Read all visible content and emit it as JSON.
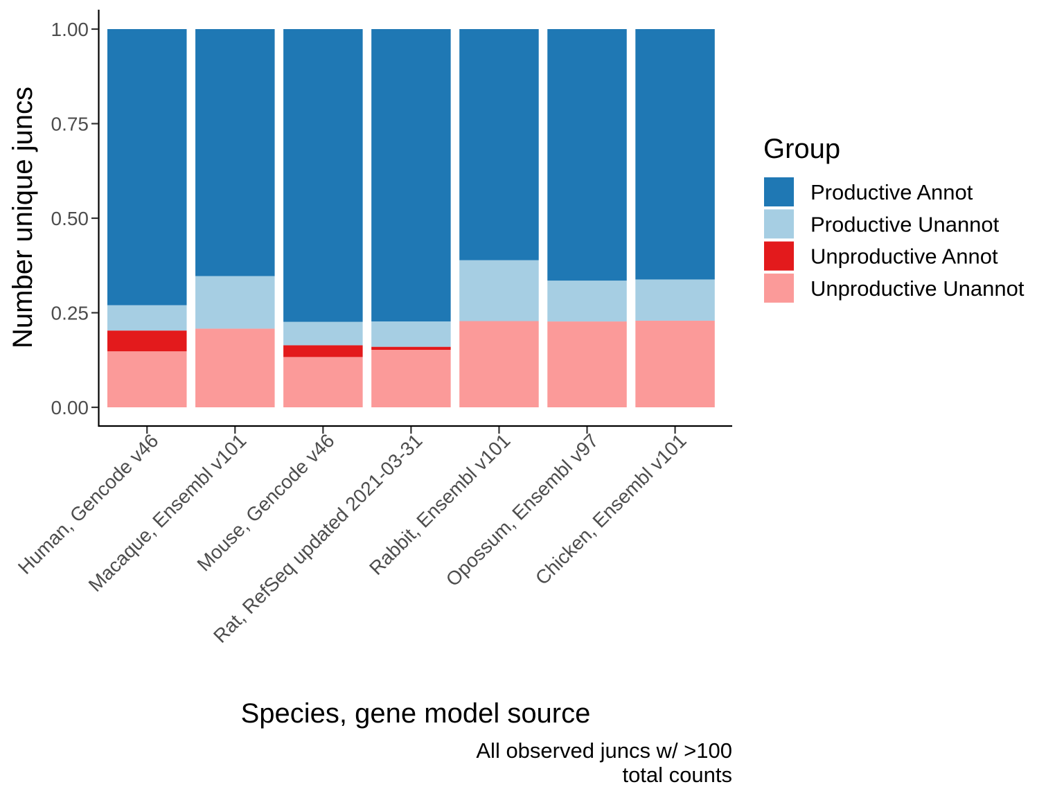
{
  "chart_data": {
    "type": "bar",
    "stacked": true,
    "normalized": true,
    "categories": [
      "Human, Gencode v46",
      "Macaque, Ensembl v101",
      "Mouse, Gencode v46",
      "Rat, RefSeq updated 2021-03-31",
      "Rabbit, Ensembl v101",
      "Opossum, Ensembl v97",
      "Chicken, Ensembl v101"
    ],
    "series": [
      {
        "name": "Unproductive Unannot",
        "color": "#fb9a99",
        "values": [
          0.148,
          0.208,
          0.133,
          0.152,
          0.228,
          0.227,
          0.229
        ]
      },
      {
        "name": "Unproductive Annot",
        "color": "#e31a1c",
        "values": [
          0.055,
          0.0,
          0.031,
          0.008,
          0.0,
          0.0,
          0.0
        ]
      },
      {
        "name": "Productive Unannot",
        "color": "#a6cee3",
        "values": [
          0.067,
          0.139,
          0.062,
          0.067,
          0.161,
          0.108,
          0.109
        ]
      },
      {
        "name": "Productive Annot",
        "color": "#1f78b4",
        "values": [
          0.73,
          0.653,
          0.774,
          0.773,
          0.611,
          0.665,
          0.662
        ]
      }
    ],
    "legend": {
      "title": "Group",
      "position": "right",
      "order": [
        "Productive Annot",
        "Productive Unannot",
        "Unproductive Annot",
        "Unproductive Unannot"
      ]
    },
    "title": "",
    "xlabel": "Species, gene model source",
    "ylabel": "Number unique juncs",
    "ylim": [
      0,
      1
    ],
    "yticks": [
      "0.00",
      "0.25",
      "0.50",
      "0.75",
      "1.00"
    ],
    "caption": [
      "All observed juncs w/ >100",
      "total counts"
    ],
    "grid": false
  }
}
